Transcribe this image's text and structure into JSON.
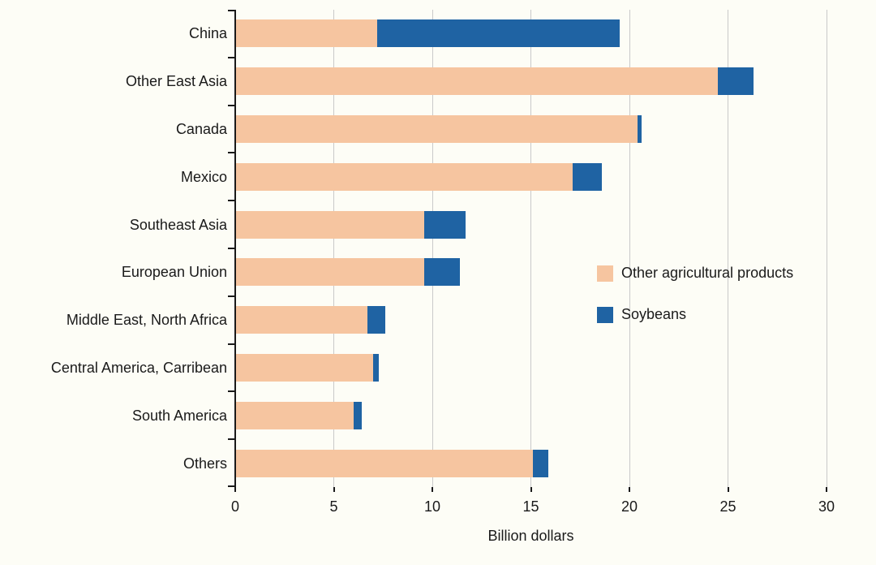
{
  "background_color": "#fdfdf6",
  "axis_color": "#1a1a1a",
  "gridline_color": "#c9c9c9",
  "chart_data": {
    "type": "bar",
    "orientation": "horizontal",
    "stacked": true,
    "title": "",
    "xlabel": "Billion dollars",
    "ylabel": "",
    "xlim": [
      0,
      30
    ],
    "xticks": [
      0,
      5,
      10,
      15,
      20,
      25,
      30
    ],
    "grid": true,
    "legend_position": "middle-right",
    "categories": [
      "China",
      "Other East Asia",
      "Canada",
      "Mexico",
      "Southeast Asia",
      "European Union",
      "Middle East, North Africa",
      "Central America, Carribean",
      "South America",
      "Others"
    ],
    "series": [
      {
        "name": "Other agricultural products",
        "color": "#f6c5a0",
        "values": [
          7.2,
          24.5,
          20.4,
          17.1,
          9.6,
          9.6,
          6.7,
          7.0,
          6.0,
          15.1
        ]
      },
      {
        "name": "Soybeans",
        "color": "#1f63a3",
        "values": [
          12.3,
          1.8,
          0.2,
          1.5,
          2.1,
          1.8,
          0.9,
          0.3,
          0.4,
          0.8
        ]
      }
    ],
    "totals": [
      19.5,
      26.3,
      20.6,
      18.6,
      11.7,
      11.4,
      7.6,
      7.3,
      6.4,
      15.9
    ]
  }
}
